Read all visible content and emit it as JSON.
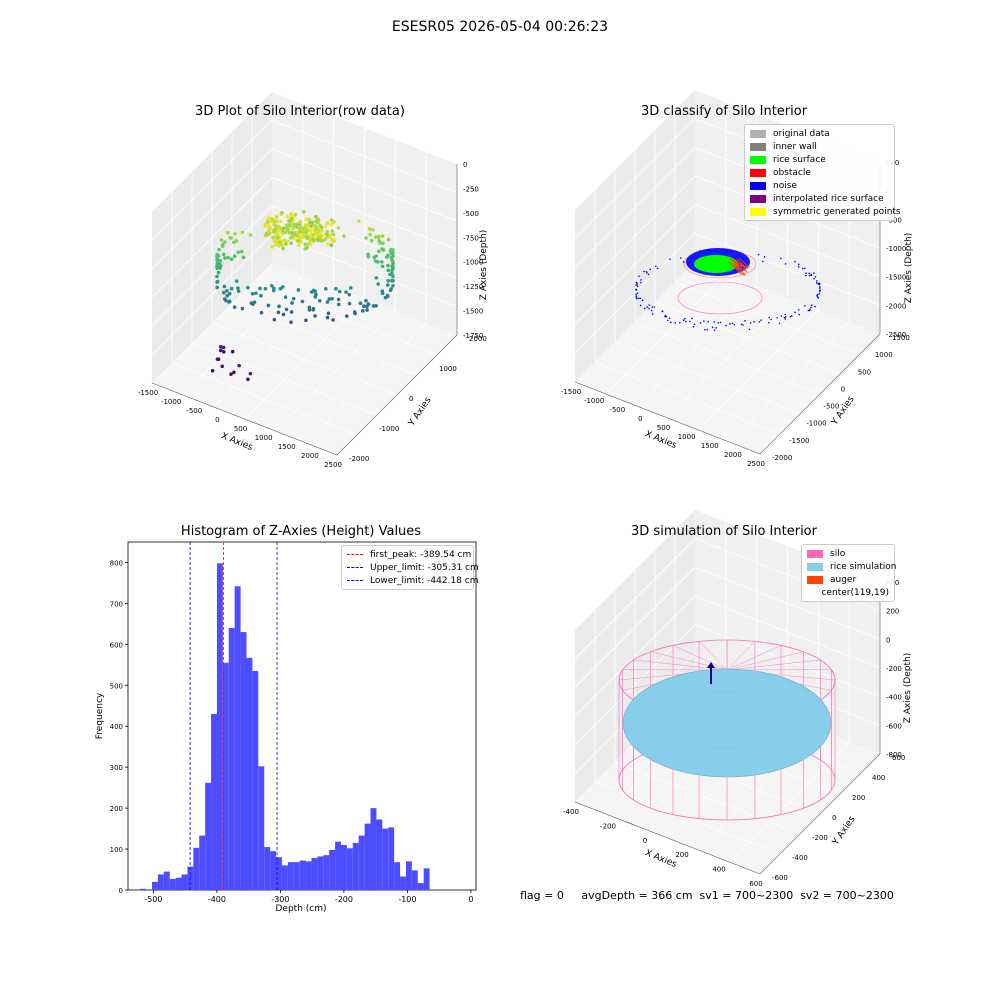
{
  "figure": {
    "suptitle": "ESESR05 2026-05-04 00:26:23",
    "footer": "flag = 0     avgDepth = 366 cm  sv1 = 700~2300  sv2 = 700~2300"
  },
  "colors": {
    "hist_bar": "#4d4dff",
    "first_peak": "#ff0000",
    "limit": "#0000ff",
    "silo": "#ff69b4",
    "rice_sim": "#87ceeb",
    "auger": "#ff4500",
    "original": "#b0b0b0",
    "inner_wall": "#808080",
    "rice_surface": "#00ff00",
    "obstacle": "#ff0000",
    "noise": "#0000ff",
    "interp": "#800080",
    "symmetric": "#ffff00"
  },
  "chart_data": [
    {
      "type": "scatter",
      "projection": "3d",
      "title": "3D Plot of Silo Interior(row data)",
      "xlabel": "X Axies",
      "ylabel": "Y Axies",
      "zlabel": "Z Axies (Depth)",
      "xticks": [
        "-1500",
        "-1000",
        "-500",
        "0",
        "500",
        "1000",
        "1500",
        "2000",
        "2500"
      ],
      "yticks": [
        "-2000",
        "-1000",
        "0",
        "1000",
        "2000"
      ],
      "zticks": [
        "0",
        "-250",
        "-500",
        "-750",
        "-1000",
        "-1250",
        "-1500",
        "-1750"
      ],
      "colormap": "viridis",
      "grid": true
    },
    {
      "type": "scatter",
      "projection": "3d",
      "title": "3D classify of Silo Interior",
      "xlabel": "X Axies",
      "ylabel": "Y Axies",
      "zlabel": "Z Axies (Depth)",
      "xticks": [
        "-1500",
        "-1000",
        "-500",
        "0",
        "500",
        "1000",
        "1500",
        "2000",
        "2500"
      ],
      "yticks": [
        "-2000",
        "-1500",
        "-1000",
        "-500",
        "0",
        "500",
        "1000",
        "1500"
      ],
      "zticks": [
        "500",
        "0",
        "-500",
        "-1000",
        "-1500",
        "-2000",
        "-2500"
      ],
      "legend_position": "top-right",
      "legend": [
        "original data",
        "inner wall",
        "rice surface",
        "obstacle",
        "noise",
        "interpolated rice surface",
        "symmetric generated points"
      ],
      "grid": true
    },
    {
      "type": "bar",
      "title": "Histogram of Z-Axies (Height) Values",
      "xlabel": "Depth (cm)",
      "ylabel": "Frequency",
      "xlim": [
        -540,
        8
      ],
      "ylim": [
        0,
        850
      ],
      "xticks": [
        -500,
        -400,
        -300,
        -200,
        -100,
        0
      ],
      "yticks": [
        0,
        100,
        200,
        300,
        400,
        500,
        600,
        700,
        800
      ],
      "bin_width": 9.3,
      "bins_start": [
        -520.8,
        -511.5,
        -502.2,
        -492.9,
        -483.6,
        -474.3,
        -465.0,
        -455.7,
        -446.4,
        -437.1,
        -427.8,
        -418.5,
        -409.2,
        -399.9,
        -390.6,
        -381.3,
        -372.0,
        -362.7,
        -353.4,
        -344.1,
        -334.8,
        -325.5,
        -316.2,
        -306.9,
        -297.6,
        -288.3,
        -279.0,
        -269.7,
        -260.4,
        -251.1,
        -241.8,
        -232.5,
        -223.2,
        -213.9,
        -204.6,
        -195.3,
        -186.0,
        -176.7,
        -167.4,
        -158.1,
        -148.8,
        -139.5,
        -130.2,
        -120.9,
        -111.6,
        -102.3,
        -93.0,
        -83.7,
        -74.4,
        -65.1,
        -55.8,
        -46.5,
        -37.2,
        -27.9,
        -18.6,
        -9.3
      ],
      "values": [
        3,
        0,
        20,
        38,
        45,
        27,
        30,
        38,
        57,
        103,
        133,
        262,
        430,
        798,
        555,
        640,
        742,
        630,
        567,
        535,
        302,
        105,
        95,
        80,
        60,
        68,
        68,
        72,
        70,
        78,
        82,
        85,
        98,
        118,
        110,
        102,
        115,
        133,
        162,
        200,
        172,
        150,
        153,
        68,
        33,
        70,
        48,
        17,
        53,
        0,
        0,
        0,
        0,
        0,
        0,
        0
      ],
      "vlines": [
        {
          "x": -389.54,
          "label": "first_peak: -389.54 cm"
        },
        {
          "x": -305.31,
          "label": "Upper_limit: -305.31 cm"
        },
        {
          "x": -442.18,
          "label": "Lower_limit: -442.18 cm"
        }
      ],
      "legend_position": "top-right"
    },
    {
      "type": "surface",
      "projection": "3d",
      "title": "3D simulation of Silo Interior",
      "xlabel": "X Axies",
      "ylabel": "Y Axies",
      "zlabel": "Z Axies (Depth)",
      "xticks": [
        "-400",
        "-200",
        "0",
        "200",
        "400",
        "600"
      ],
      "yticks": [
        "-600",
        "-400",
        "-200",
        "0",
        "200",
        "400",
        "600"
      ],
      "zticks": [
        "400",
        "200",
        "0",
        "-200",
        "-400",
        "-600",
        "-800"
      ],
      "legend_position": "top-right",
      "legend": [
        "silo",
        "rice simulation",
        "auger",
        "center(119,19)"
      ],
      "grid": true
    }
  ]
}
